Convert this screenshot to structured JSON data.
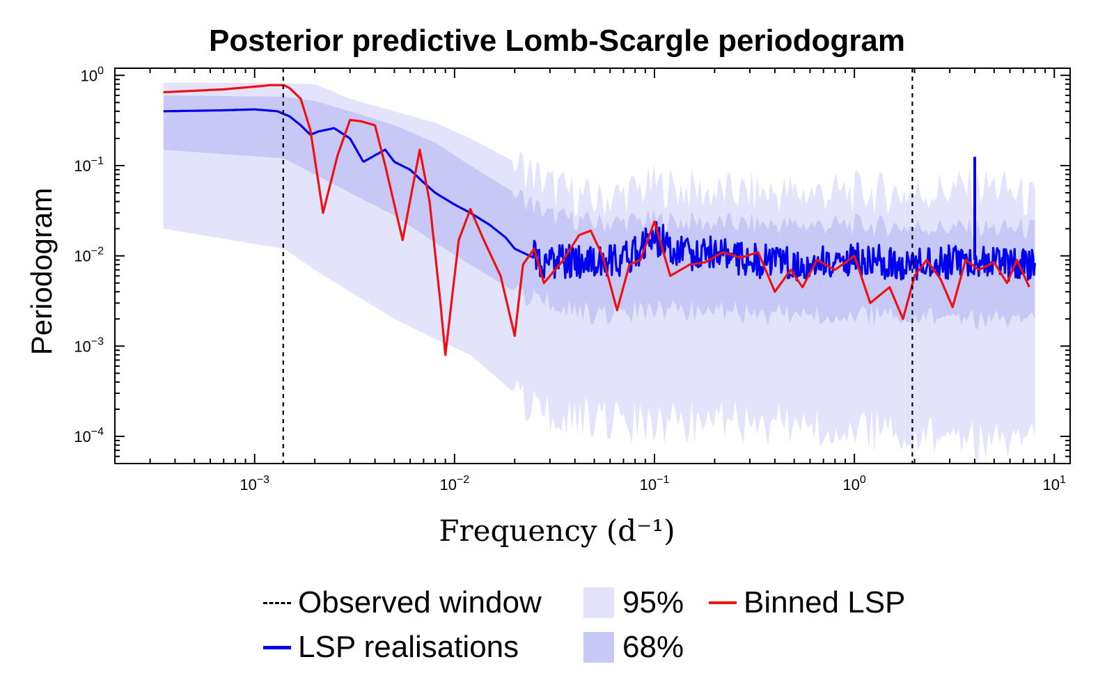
{
  "chart_data": {
    "type": "line",
    "title": "Posterior predictive Lomb-Scargle periodogram",
    "xlabel": "Frequency (d⁻¹)",
    "ylabel": "Periodogram",
    "xscale": "log",
    "yscale": "log",
    "xlim": [
      0.0002,
      12
    ],
    "ylim": [
      5e-05,
      1.2
    ],
    "x_ticks": [
      {
        "value": 0.001,
        "base": "10",
        "exp": "−3"
      },
      {
        "value": 0.01,
        "base": "10",
        "exp": "−2"
      },
      {
        "value": 0.1,
        "base": "10",
        "exp": "−1"
      },
      {
        "value": 1,
        "base": "10",
        "exp": "0"
      },
      {
        "value": 10,
        "base": "10",
        "exp": "1"
      }
    ],
    "y_ticks": [
      {
        "value": 1,
        "base": "10",
        "exp": "0"
      },
      {
        "value": 0.1,
        "base": "10",
        "exp": "−1"
      },
      {
        "value": 0.01,
        "base": "10",
        "exp": "−2"
      },
      {
        "value": 0.001,
        "base": "10",
        "exp": "−3"
      },
      {
        "value": 0.0001,
        "base": "10",
        "exp": "−4"
      }
    ],
    "observed_window": [
      0.00139,
      1.95
    ],
    "band95": {
      "name": "95%",
      "x": [
        0.00035,
        0.0014,
        0.002,
        0.003,
        0.005,
        0.008,
        0.012,
        0.02,
        0.03,
        0.05,
        0.1,
        0.2,
        0.5,
        1,
        2,
        5,
        8
      ],
      "lower": [
        0.02,
        0.012,
        0.007,
        0.004,
        0.002,
        0.0012,
        0.0008,
        0.0003,
        0.00017,
        0.00016,
        0.00013,
        0.00015,
        0.00013,
        0.00012,
        0.0001,
        9e-05,
        0.0001
      ],
      "upper": [
        0.83,
        0.82,
        0.8,
        0.55,
        0.4,
        0.3,
        0.2,
        0.11,
        0.06,
        0.04,
        0.06,
        0.05,
        0.05,
        0.05,
        0.05,
        0.06,
        0.04
      ]
    },
    "band68": {
      "name": "68%",
      "x": [
        0.00035,
        0.0014,
        0.002,
        0.003,
        0.005,
        0.008,
        0.012,
        0.02,
        0.03,
        0.05,
        0.1,
        0.2,
        0.5,
        1,
        2,
        5,
        8
      ],
      "lower": [
        0.15,
        0.12,
        0.08,
        0.05,
        0.028,
        0.014,
        0.008,
        0.004,
        0.003,
        0.0022,
        0.0025,
        0.0024,
        0.0022,
        0.0022,
        0.0021,
        0.002,
        0.002
      ],
      "upper": [
        0.6,
        0.58,
        0.52,
        0.4,
        0.28,
        0.18,
        0.1,
        0.05,
        0.028,
        0.023,
        0.025,
        0.023,
        0.022,
        0.022,
        0.021,
        0.02,
        0.02
      ]
    },
    "series": [
      {
        "name": "LSP realisations",
        "color": "#0000ee",
        "x": [
          0.00035,
          0.0007,
          0.001,
          0.0013,
          0.0015,
          0.0017,
          0.0019,
          0.0021,
          0.0025,
          0.003,
          0.0035,
          0.004,
          0.0045,
          0.005,
          0.006,
          0.007,
          0.008,
          0.01,
          0.012,
          0.015,
          0.018,
          0.02,
          0.025,
          0.03,
          0.04,
          0.05,
          0.07,
          0.1,
          0.15,
          0.2,
          0.3,
          0.5,
          0.7,
          1,
          1.5,
          2,
          3,
          4,
          4.2,
          5,
          6,
          7,
          8
        ],
        "y": [
          0.4,
          0.41,
          0.42,
          0.4,
          0.35,
          0.28,
          0.22,
          0.24,
          0.26,
          0.2,
          0.11,
          0.13,
          0.15,
          0.11,
          0.09,
          0.065,
          0.05,
          0.037,
          0.03,
          0.022,
          0.016,
          0.012,
          0.0095,
          0.0085,
          0.0088,
          0.0085,
          0.009,
          0.016,
          0.01,
          0.011,
          0.009,
          0.008,
          0.0085,
          0.009,
          0.0085,
          0.008,
          0.0085,
          0.125,
          0.009,
          0.0085,
          0.008,
          0.0085,
          0.008
        ]
      },
      {
        "name": "Binned LSP",
        "color": "#ee1111",
        "x": [
          0.00035,
          0.0007,
          0.001,
          0.0012,
          0.0014,
          0.0015,
          0.0017,
          0.0019,
          0.0022,
          0.0026,
          0.003,
          0.0034,
          0.004,
          0.0045,
          0.0055,
          0.0067,
          0.0075,
          0.0085,
          0.009,
          0.0105,
          0.012,
          0.014,
          0.017,
          0.02,
          0.022,
          0.025,
          0.028,
          0.035,
          0.042,
          0.048,
          0.055,
          0.065,
          0.075,
          0.085,
          0.1,
          0.12,
          0.15,
          0.18,
          0.22,
          0.27,
          0.33,
          0.4,
          0.48,
          0.55,
          0.65,
          0.8,
          1,
          1.2,
          1.5,
          1.75,
          2,
          2.3,
          2.7,
          3.1,
          3.6,
          4.2,
          5,
          5.8,
          6.5,
          7.5
        ],
        "y": [
          0.65,
          0.7,
          0.75,
          0.78,
          0.78,
          0.72,
          0.55,
          0.25,
          0.03,
          0.13,
          0.32,
          0.31,
          0.28,
          0.1,
          0.015,
          0.15,
          0.04,
          0.003,
          0.0008,
          0.015,
          0.033,
          0.015,
          0.006,
          0.0013,
          0.008,
          0.012,
          0.005,
          0.009,
          0.017,
          0.019,
          0.01,
          0.0025,
          0.008,
          0.009,
          0.024,
          0.006,
          0.008,
          0.0085,
          0.011,
          0.0095,
          0.011,
          0.004,
          0.007,
          0.0045,
          0.009,
          0.007,
          0.01,
          0.003,
          0.0045,
          0.002,
          0.006,
          0.009,
          0.0055,
          0.0027,
          0.009,
          0.007,
          0.0085,
          0.005,
          0.009,
          0.0045
        ]
      }
    ]
  },
  "legend": {
    "observed_window": "Observed window",
    "lsp_realisations": "LSP realisations",
    "band95": "95%",
    "band68": "68%",
    "binned_lsp": "Binned LSP"
  },
  "colors": {
    "band95": "#e3e3fb",
    "band68": "#c8c8f6",
    "lsp": "#0000ee",
    "binned": "#ee1111",
    "window": "#000000"
  }
}
